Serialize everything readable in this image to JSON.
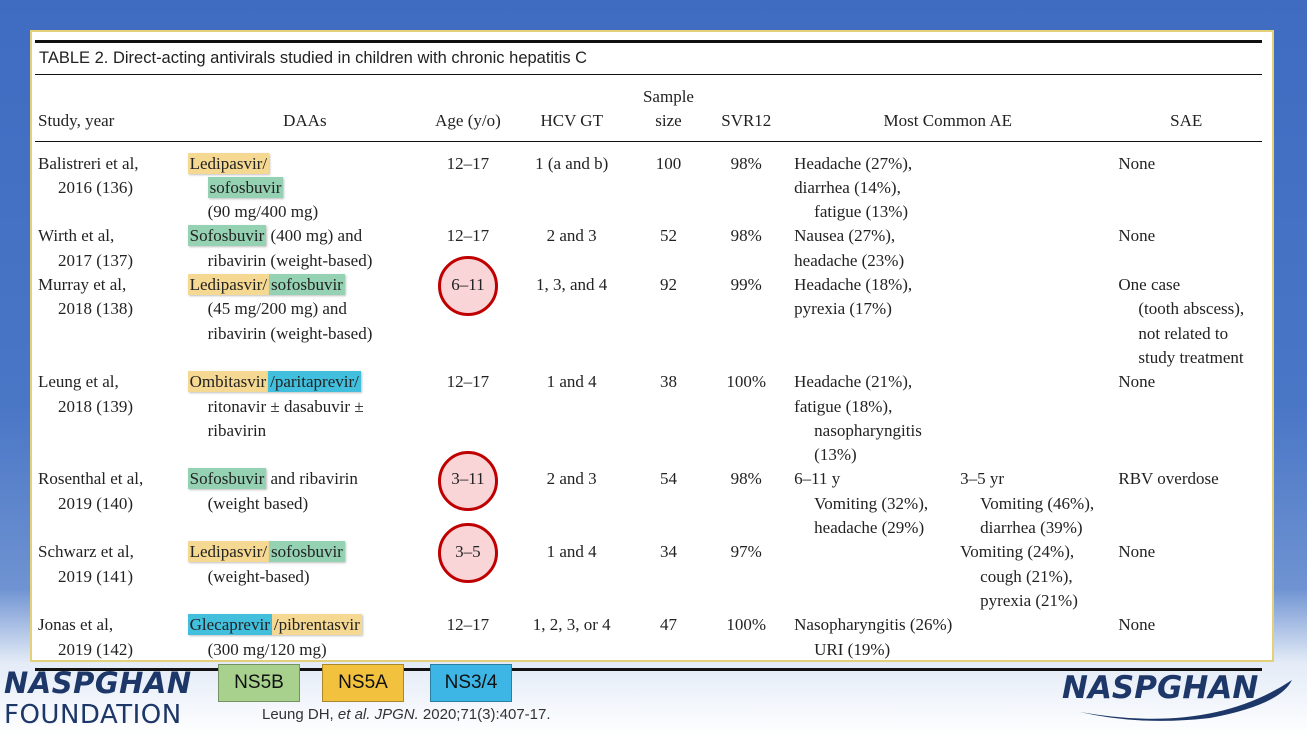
{
  "table": {
    "title": "TABLE 2.  Direct-acting antivirals studied in children with chronic hepatitis C",
    "columns": [
      [
        "Study, year"
      ],
      [
        "DAAs"
      ],
      [
        "Age (y/o)"
      ],
      [
        "HCV GT"
      ],
      [
        "Sample",
        "size"
      ],
      [
        "SVR12"
      ],
      [
        "Most Common AE"
      ],
      [
        "SAE"
      ]
    ],
    "rows": [
      {
        "study": [
          "Balistreri et al,",
          "2016 (136)"
        ],
        "daas": [
          [
            {
              "text": "Ledipasvir/",
              "color": "#f5d891"
            }
          ],
          [
            {
              "text": "sofosbuvir",
              "color": "#95d2b3"
            }
          ],
          [
            {
              "text": "(90 mg/400 mg)"
            }
          ]
        ],
        "age": "12–17",
        "gt": "1 (a and b)",
        "n": 100,
        "svr": "98%",
        "ae": [
          [
            "Headache (27%), diarrhea (14%),",
            "fatigue (13%)"
          ]
        ],
        "sae": [
          "None"
        ]
      },
      {
        "study": [
          "Wirth et al,",
          "2017 (137)"
        ],
        "daas": [
          [
            {
              "text": "Sofosbuvir",
              "color": "#95d2b3"
            },
            {
              "text": " (400 mg) and"
            }
          ],
          [
            {
              "text": "ribavirin (weight-based)"
            }
          ]
        ],
        "age": "12–17",
        "gt": "2 and 3",
        "n": 52,
        "svr": "98%",
        "ae": [
          [
            "Nausea (27%), headache (23%)"
          ]
        ],
        "sae": [
          "None"
        ]
      },
      {
        "study": [
          "Murray et al,",
          "2018 (138)"
        ],
        "daas": [
          [
            {
              "text": "Ledipasvir/",
              "color": "#f5d891"
            },
            {
              "text": "sofosbuvir",
              "color": "#95d2b3"
            }
          ],
          [
            {
              "text": "(45 mg/200 mg) and"
            }
          ],
          [
            {
              "text": "ribavirin (weight-based)"
            }
          ]
        ],
        "age": "6–11",
        "circled": true,
        "gt": "1, 3, and 4",
        "n": 92,
        "svr": "99%",
        "ae": [
          [
            "Headache (18%), pyrexia (17%)"
          ]
        ],
        "sae": [
          "One case",
          "(tooth abscess),",
          "not related to",
          "study treatment"
        ]
      },
      {
        "study": [
          "Leung et al,",
          "2018 (139)"
        ],
        "daas": [
          [
            {
              "text": "Ombitasvir",
              "color": "#f5d891"
            },
            {
              "text": "/paritaprevir/",
              "color": "#41bfdd"
            }
          ],
          [
            {
              "text": "ritonavir ± dasabuvir ±"
            }
          ],
          [
            {
              "text": "ribavirin"
            }
          ]
        ],
        "age": "12–17",
        "gt": "1 and 4",
        "n": 38,
        "svr": "100%",
        "ae": [
          [
            "Headache (21%), fatigue (18%),",
            "nasopharyngitis (13%)"
          ]
        ],
        "sae": [
          "None"
        ]
      },
      {
        "study": [
          "Rosenthal et al,",
          "2019 (140)"
        ],
        "daas": [
          [
            {
              "text": "Sofosbuvir",
              "color": "#95d2b3"
            },
            {
              "text": " and ribavirin"
            }
          ],
          [
            {
              "text": "(weight based)"
            }
          ]
        ],
        "age": "3–11",
        "circled": true,
        "gt": "2 and 3",
        "n": 54,
        "svr": "98%",
        "ae": [
          [
            "6–11 y",
            "Vomiting (32%),",
            "headache (29%)"
          ],
          [
            "3–5 yr",
            "Vomiting (46%),",
            "diarrhea (39%)"
          ]
        ],
        "sae": [
          "RBV overdose"
        ]
      },
      {
        "study": [
          "Schwarz et al,",
          "2019 (141)"
        ],
        "daas": [
          [
            {
              "text": "Ledipasvir/",
              "color": "#f5d891"
            },
            {
              "text": "sofosbuvir",
              "color": "#95d2b3"
            }
          ],
          [
            {
              "text": "(weight-based)"
            }
          ]
        ],
        "age": "3–5",
        "circled": true,
        "gt": "1 and 4",
        "n": 34,
        "svr": "97%",
        "ae": [
          [],
          [
            "Vomiting (24%),",
            "cough (21%),",
            "pyrexia (21%)"
          ]
        ],
        "sae": [
          "None"
        ]
      },
      {
        "study": [
          "Jonas et al,",
          "2019 (142)"
        ],
        "daas": [
          [
            {
              "text": "Glecaprevir",
              "color": "#41bfdd"
            },
            {
              "text": "/pibrentasvir",
              "color": "#f5d891"
            }
          ],
          [
            {
              "text": "(300 mg/120 mg)"
            }
          ]
        ],
        "age": "12–17",
        "gt": "1, 2, 3, or 4",
        "n": 47,
        "svr": "100%",
        "ae": [
          [
            "Nasopharyngitis (26%)",
            "URI (19%)"
          ]
        ],
        "sae": [
          "None"
        ]
      }
    ]
  },
  "legend": [
    {
      "label": "NS5B",
      "color": "#a9d18e"
    },
    {
      "label": "NS5A",
      "color": "#f2c23e"
    },
    {
      "label": "NS3/4",
      "color": "#3db6e6"
    }
  ],
  "citation": [
    {
      "text": "Leung DH, ",
      "italic": false
    },
    {
      "text": "et al. JPGN.",
      "italic": true
    },
    {
      "text": " 2020;71(3):407-17.",
      "italic": false
    }
  ],
  "logo_left": {
    "line1": "NASPGHAN",
    "line2": "FOUNDATION"
  },
  "logo_right": "NASPGHAN"
}
